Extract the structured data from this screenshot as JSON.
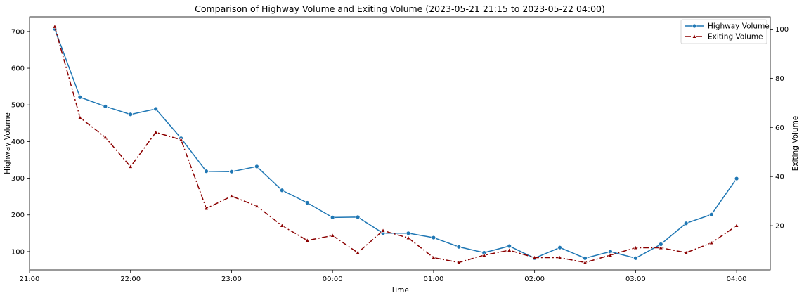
{
  "chart_data": {
    "type": "line",
    "title": "Comparison of Highway Volume and Exiting Volume (2023-05-21 21:15 to 2023-05-22 04:00)",
    "xlabel": "Time",
    "ylabel_left": "Highway Volume",
    "ylabel_right": "Exiting Volume",
    "x_ticks": [
      "21:00",
      "22:00",
      "23:00",
      "00:00",
      "01:00",
      "02:00",
      "03:00",
      "04:00"
    ],
    "x": [
      "21:15",
      "21:30",
      "21:45",
      "22:00",
      "22:15",
      "22:30",
      "22:45",
      "23:00",
      "23:15",
      "23:30",
      "23:45",
      "00:00",
      "00:15",
      "00:30",
      "00:45",
      "01:00",
      "01:15",
      "01:30",
      "01:45",
      "02:00",
      "02:15",
      "02:30",
      "02:45",
      "03:00",
      "03:15",
      "03:30",
      "03:45",
      "04:00"
    ],
    "x_range": [
      "21:00",
      "04:20"
    ],
    "y_left_ticks": [
      100,
      200,
      300,
      400,
      500,
      600,
      700
    ],
    "y_left_range": [
      50,
      740
    ],
    "y_right_ticks": [
      20,
      40,
      60,
      80,
      100
    ],
    "y_right_range": [
      2,
      105
    ],
    "grid": false,
    "legend_position": "top-right",
    "series": [
      {
        "name": "Highway Volume",
        "axis": "left",
        "color": "#1f77b4",
        "marker": "circle",
        "line_style": "solid",
        "values": [
          707,
          521,
          496,
          474,
          489,
          409,
          319,
          318,
          332,
          267,
          233,
          193,
          194,
          150,
          150,
          138,
          113,
          97,
          115,
          82,
          111,
          82,
          100,
          82,
          120,
          177,
          201,
          299
        ]
      },
      {
        "name": "Exiting Volume",
        "axis": "right",
        "color": "#8b0000",
        "marker": "triangle",
        "line_style": "dashdot",
        "values": [
          101,
          64,
          56,
          44,
          58,
          55,
          27,
          32,
          28,
          20,
          14,
          16,
          9,
          18,
          15,
          7,
          5,
          8,
          10,
          7,
          7,
          5,
          8,
          11,
          11,
          9,
          13,
          20
        ]
      }
    ]
  }
}
